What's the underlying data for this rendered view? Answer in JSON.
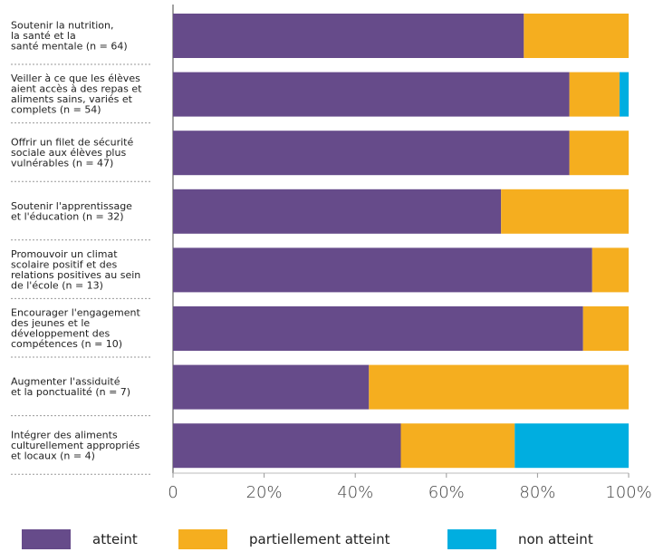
{
  "chart_data": {
    "type": "bar",
    "orientation": "horizontal",
    "stacked": true,
    "categories": [
      "Soutenir la nutrition,\nla santé et la\nsanté mentale (n = 64)",
      "Veiller à ce que les élèves\naient accès à des repas et\naliments sains, variés et\ncomplets (n = 54)",
      "Offrir un filet de sécurité\nsociale aux élèves plus\nvulnérables (n = 47)",
      "Soutenir l'apprentissage\net l'éducation (n = 32)",
      "Promouvoir un climat\nscolaire positif et des\nrelations positives au sein\nde l'école (n = 13)",
      "Encourager l'engagement\ndes jeunes et le\ndéveloppement des\ncompétences (n = 10)",
      "Augmenter l'assiduité\net la ponctualité (n = 7)",
      "Intégrer des aliments\nculturellement appropriés\net locaux (n = 4)"
    ],
    "series": [
      {
        "name": "atteint",
        "color": "#664b8a",
        "values": [
          77,
          87,
          87,
          72,
          92,
          90,
          43,
          50
        ]
      },
      {
        "name": "partiellement atteint",
        "color": "#f5ae1f",
        "values": [
          23,
          11,
          13,
          28,
          8,
          10,
          57,
          25
        ]
      },
      {
        "name": "non atteint",
        "color": "#00aee0",
        "values": [
          0,
          2,
          0,
          0,
          0,
          0,
          0,
          25
        ]
      }
    ],
    "xlim": [
      0,
      100
    ],
    "xticks": [
      "0",
      "20%",
      "40%",
      "60%",
      "80%",
      "100%"
    ],
    "xlabel": "",
    "ylabel": "",
    "legend_position": "bottom"
  }
}
